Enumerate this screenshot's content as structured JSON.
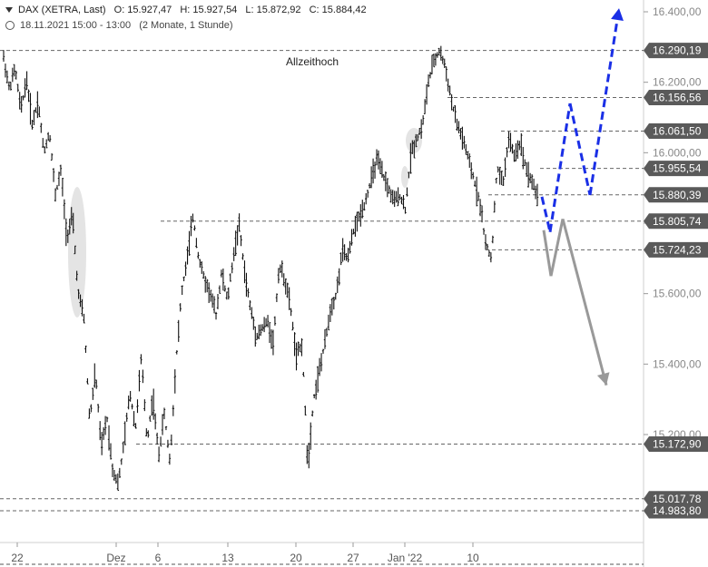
{
  "header": {
    "instrument": "DAX (XETRA, Last)",
    "open": "O: 15.927,47",
    "high": "H: 15.927,54",
    "low": "L: 15.872,92",
    "close": "C: 15.884,42",
    "period": "18.11.2021 15:00 - 13:00",
    "range": "(2 Monate, 1 Stunde)"
  },
  "colors": {
    "candles": "#111111",
    "projection_bull": "#1a2fe6",
    "projection_bear": "#999999",
    "level_tag": "#5a5a5a",
    "grid": "#dddddd"
  },
  "chart_data": {
    "type": "bar",
    "title": "",
    "xlabel": "",
    "ylabel": "",
    "ylim": [
      14930,
      16450
    ],
    "y_ticks": [
      "16.400,00",
      "16.200,00",
      "16.000,00",
      "15.800,00",
      "15.600,00",
      "15.400,00",
      "15.200,00"
    ],
    "x_ticks": [
      "22",
      "Dez",
      "6",
      "13",
      "20",
      "27",
      "Jan '22",
      "10"
    ],
    "annotation": "Allzeithoch",
    "levels": [
      {
        "label": "16.290,19",
        "value": 16290.19
      },
      {
        "label": "16.156,56",
        "value": 16156.56
      },
      {
        "label": "16.061,50",
        "value": 16061.5
      },
      {
        "label": "15.955,54",
        "value": 15955.54
      },
      {
        "label": "15.880,39",
        "value": 15880.39
      },
      {
        "label": "15.805,74",
        "value": 15805.74
      },
      {
        "label": "15.724,23",
        "value": 15724.23
      },
      {
        "label": "15.172,90",
        "value": 15172.9
      },
      {
        "label": "15.017,78",
        "value": 15017.78
      },
      {
        "label": "14.983,80",
        "value": 14983.8
      }
    ],
    "price_path": [
      16270,
      16180,
      16240,
      16120,
      16210,
      16080,
      16150,
      16000,
      16060,
      15880,
      15950,
      15760,
      15820,
      15600,
      15530,
      15240,
      15380,
      15160,
      15250,
      15100,
      15060,
      15180,
      15320,
      15220,
      15420,
      15180,
      15310,
      15140,
      15260,
      15120,
      15400,
      15600,
      15700,
      15820,
      15700,
      15640,
      15600,
      15540,
      15660,
      15580,
      15700,
      15800,
      15660,
      15560,
      15480,
      15500,
      15520,
      15460,
      15680,
      15640,
      15560,
      15420,
      15460,
      15110,
      15300,
      15380,
      15460,
      15560,
      15600,
      15720,
      15700,
      15780,
      15820,
      15860,
      15920,
      15980,
      15940,
      15900,
      15860,
      15880,
      15840,
      16000,
      16040,
      16080,
      16200,
      16260,
      16290,
      16240,
      16150,
      16080,
      16040,
      15980,
      15920,
      15860,
      15740,
      15700,
      15960,
      15910,
      16040,
      15990,
      16030,
      15960,
      15920,
      15880
    ],
    "projection_bull": [
      [
        15875,
        15775
      ],
      [
        15775,
        16140
      ],
      [
        16140,
        15880
      ],
      [
        15880,
        16410
      ]
    ],
    "projection_bear": [
      [
        15780,
        15650
      ],
      [
        15650,
        15812
      ],
      [
        15812,
        15340
      ]
    ]
  }
}
